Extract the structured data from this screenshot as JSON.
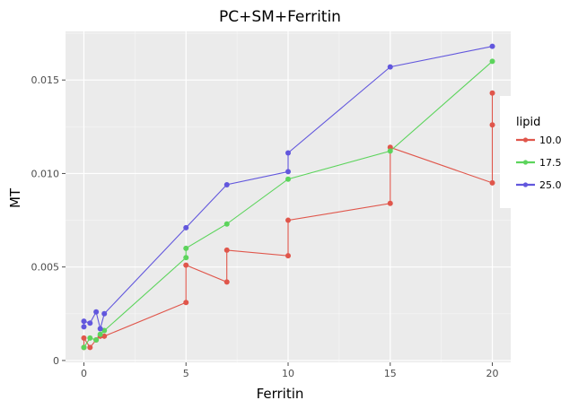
{
  "chart_data": {
    "type": "line",
    "title": "PC+SM+Ferritin",
    "xlabel": "Ferritin",
    "ylabel": "MT",
    "xlim": [
      -0.9,
      20.9
    ],
    "ylim": [
      -0.0001,
      0.0176
    ],
    "x_ticks": [
      0,
      5,
      10,
      15,
      20
    ],
    "x_tick_labels": [
      "0",
      "5",
      "10",
      "15",
      "20"
    ],
    "y_ticks": [
      0,
      0.005,
      0.01,
      0.015
    ],
    "y_tick_labels": [
      "0",
      "0.005",
      "0.010",
      "0.015"
    ],
    "grid": true,
    "legend": {
      "title": "lipid",
      "position": "right"
    },
    "series": [
      {
        "name": "10.0",
        "color": "#e0564b",
        "points": [
          [
            0,
            0.0007
          ],
          [
            0,
            0.0012
          ],
          [
            0.3,
            0.0007
          ],
          [
            0.6,
            0.0011
          ],
          [
            0.8,
            0.0013
          ],
          [
            1,
            0.0013
          ],
          [
            5,
            0.0031
          ],
          [
            5,
            0.0051
          ],
          [
            7,
            0.0042
          ],
          [
            7,
            0.0059
          ],
          [
            10,
            0.0056
          ],
          [
            10,
            0.0075
          ],
          [
            15,
            0.0084
          ],
          [
            15,
            0.0114
          ],
          [
            20,
            0.0095
          ],
          [
            20,
            0.0126
          ],
          [
            20,
            0.0143
          ]
        ]
      },
      {
        "name": "17.5",
        "color": "#5cd45c",
        "points": [
          [
            0,
            0.0007
          ],
          [
            0.3,
            0.0012
          ],
          [
            0.6,
            0.0011
          ],
          [
            0.8,
            0.0014
          ],
          [
            1,
            0.0016
          ],
          [
            5,
            0.0055
          ],
          [
            5,
            0.006
          ],
          [
            7,
            0.0073
          ],
          [
            10,
            0.0097
          ],
          [
            15,
            0.0112
          ],
          [
            20,
            0.016
          ]
        ]
      },
      {
        "name": "25.0",
        "color": "#6257dd",
        "points": [
          [
            0,
            0.0018
          ],
          [
            0,
            0.0021
          ],
          [
            0.3,
            0.002
          ],
          [
            0.6,
            0.0026
          ],
          [
            0.8,
            0.0017
          ],
          [
            1,
            0.0025
          ],
          [
            5,
            0.0071
          ],
          [
            7,
            0.0094
          ],
          [
            10,
            0.0101
          ],
          [
            10,
            0.0111
          ],
          [
            15,
            0.0157
          ],
          [
            20,
            0.0168
          ]
        ]
      }
    ]
  }
}
